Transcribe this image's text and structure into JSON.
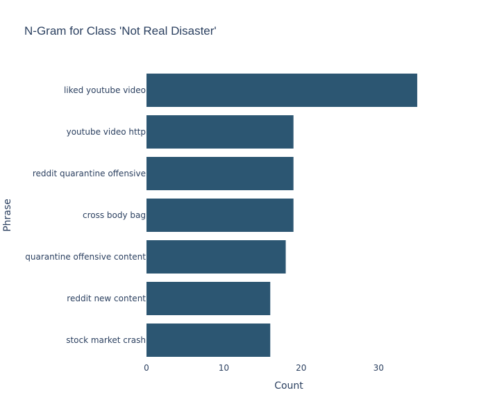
{
  "chart_data": {
    "type": "bar",
    "orientation": "horizontal",
    "title": "N-Gram for Class 'Not Real Disaster'",
    "xlabel": "Count",
    "ylabel": "Phrase",
    "categories": [
      "liked youtube video",
      "youtube video http",
      "reddit quarantine offensive",
      "cross body bag",
      "quarantine offensive content",
      "reddit new content",
      "stock market crash"
    ],
    "values": [
      35,
      19,
      19,
      19,
      18,
      16,
      16
    ],
    "xlim": [
      0,
      36.8
    ],
    "xticks": [
      0,
      10,
      20,
      30
    ],
    "bar_color": "#2c5672",
    "grid": false,
    "legend": false
  }
}
